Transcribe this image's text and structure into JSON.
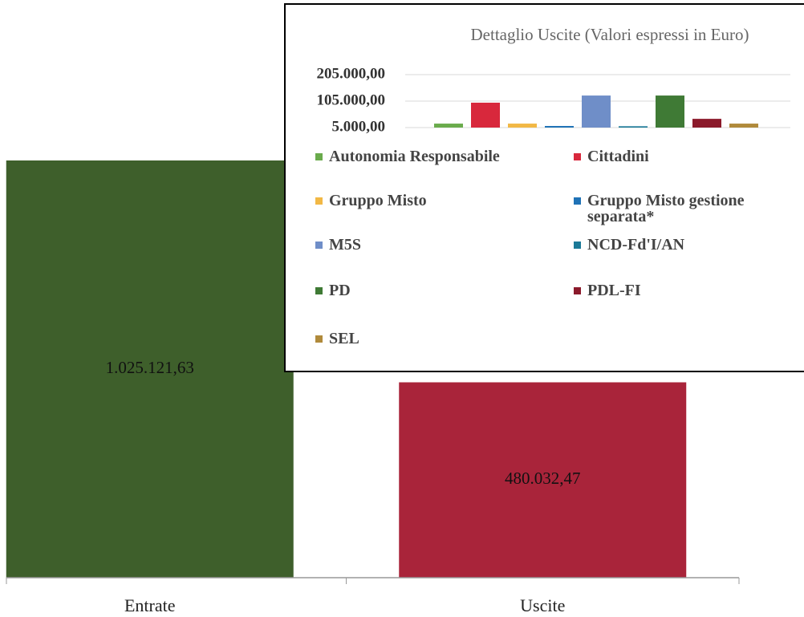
{
  "chart_data": [
    {
      "type": "bar",
      "categories": [
        "Entrate",
        "Uscite"
      ],
      "values": [
        1025121.63,
        480032.47
      ],
      "value_labels": [
        "1.025.121,63",
        "480.032,47"
      ],
      "colors": [
        "#3e5f2b",
        "#a9243a"
      ]
    },
    {
      "type": "bar",
      "title": "Dettaglio Uscite (Valori espressi in Euro)",
      "series": [
        {
          "name": "Autonomia Responsabile",
          "color": "#6aab4c",
          "values": [
            20000
          ]
        },
        {
          "name": "Cittadini",
          "color": "#d8283c",
          "values": [
            99000
          ]
        },
        {
          "name": "Gruppo Misto",
          "color": "#f2b845",
          "values": [
            20000
          ]
        },
        {
          "name": "Gruppo Misto gestione separata*",
          "color": "#1f72b6",
          "values": [
            11000
          ]
        },
        {
          "name": "M5S",
          "color": "#6f8ec8",
          "values": [
            126000
          ]
        },
        {
          "name": "NCD-Fd'I/AN",
          "color": "#1b7a98",
          "values": [
            10000
          ]
        },
        {
          "name": "PD",
          "color": "#3f7a35",
          "values": [
            126000
          ]
        },
        {
          "name": "PDL-FI",
          "color": "#8b1a2b",
          "values": [
            38000
          ]
        },
        {
          "name": "SEL",
          "color": "#b08a3b",
          "values": [
            20000
          ]
        }
      ],
      "ylim": [
        5000,
        205000
      ],
      "yticks": [
        {
          "value": 5000,
          "label": "5.000,00"
        },
        {
          "value": 105000,
          "label": "105.000,00"
        },
        {
          "value": 205000,
          "label": "205.000,00"
        }
      ],
      "grid": true
    }
  ]
}
